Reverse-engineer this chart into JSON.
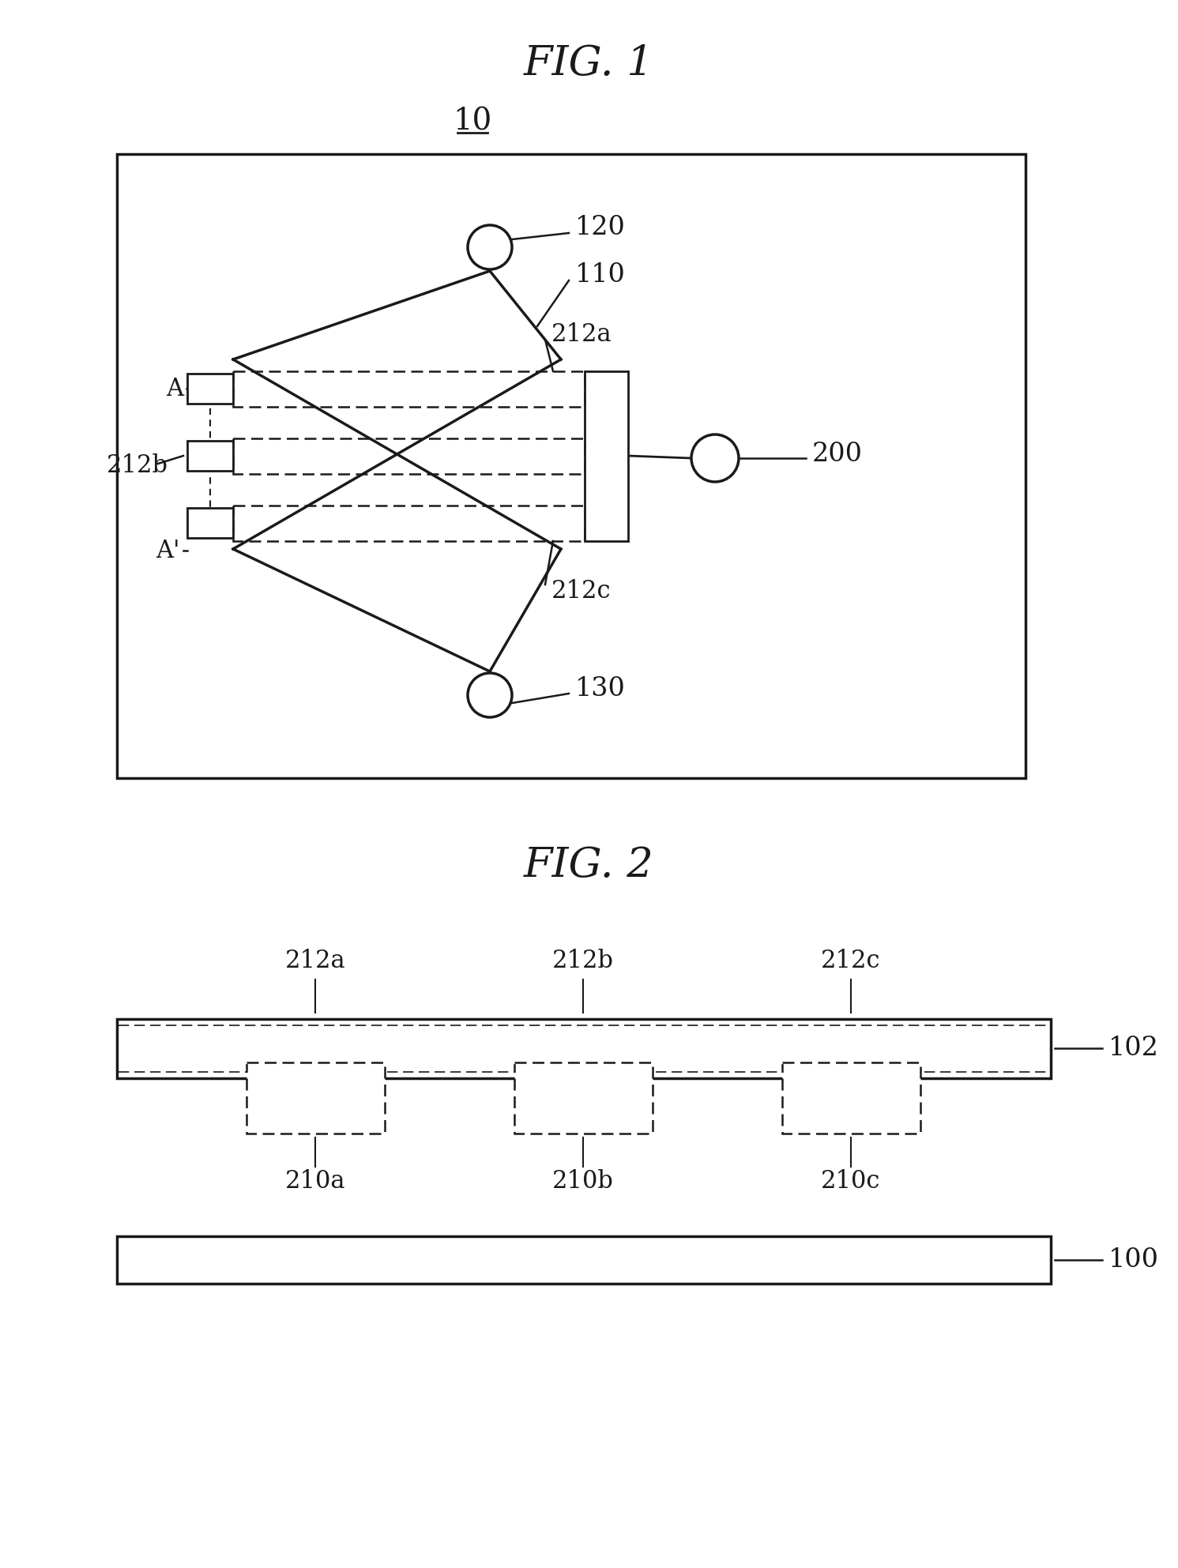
{
  "fig1_title": "FIG. 1",
  "fig2_title": "FIG. 2",
  "label_10": "10",
  "label_100": "100",
  "label_102": "102",
  "label_110": "110",
  "label_120": "120",
  "label_130": "130",
  "label_200": "200",
  "label_212a": "212a",
  "label_212b": "212b",
  "label_212c": "212c",
  "label_210a": "210a",
  "label_210b": "210b",
  "label_210c": "210c",
  "label_A": "A",
  "label_Aprime": "A'",
  "bg_color": "#ffffff",
  "line_color": "#1a1a1a",
  "font_family": "DejaVu Serif"
}
